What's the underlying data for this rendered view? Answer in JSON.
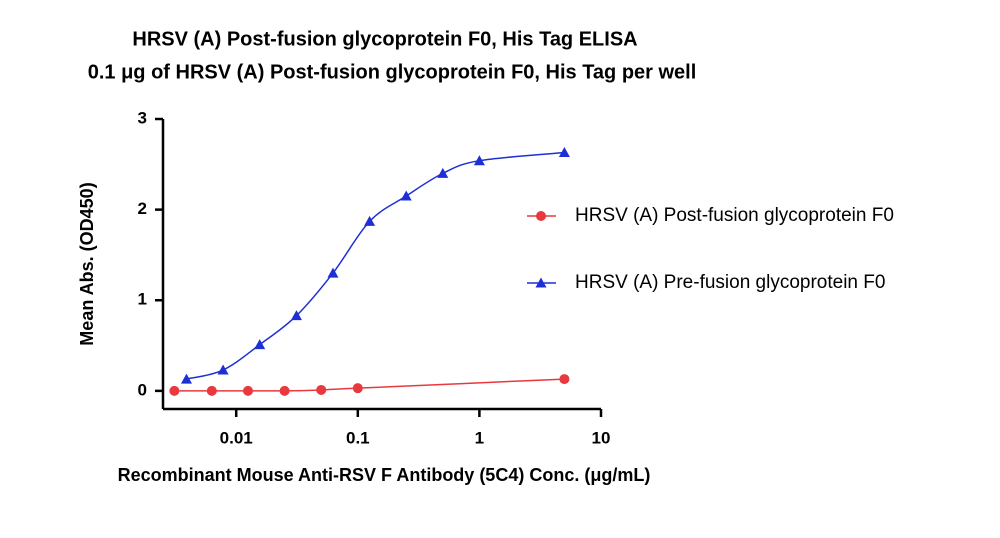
{
  "chart_data": {
    "type": "line",
    "title": "HRSV (A) Post-fusion glycoprotein F0, His Tag ELISA",
    "subtitle": "0.1 μg of HRSV (A) Post-fusion glycoprotein F0, His Tag per well",
    "x_label": "Recombinant Mouse Anti-RSV F Antibody (5C4) Conc. (μg/mL)",
    "y_label": "Mean Abs. (OD450)",
    "xscale": "log",
    "xlim": [
      0.0025,
      10
    ],
    "xticks": [
      0.01,
      0.1,
      1,
      10
    ],
    "ylim": [
      -0.2,
      3
    ],
    "yticks": [
      0,
      1,
      2,
      3
    ],
    "legend": "right",
    "series": [
      {
        "name": "HRSV (A) Post-fusion glycoprotein F0",
        "color": "#e8393f",
        "marker": "circle",
        "x": [
          0.0031,
          0.0063,
          0.0125,
          0.025,
          0.05,
          0.1,
          5
        ],
        "values": [
          0,
          0,
          0,
          0,
          0.01,
          0.03,
          0.13
        ]
      },
      {
        "name": "HRSV (A) Pre-fusion glycoprotein F0",
        "color": "#1f2fd6",
        "marker": "triangle",
        "x": [
          0.0039,
          0.0078,
          0.0156,
          0.0313,
          0.0625,
          0.125,
          0.25,
          0.5,
          1,
          5
        ],
        "values": [
          0.13,
          0.23,
          0.51,
          0.83,
          1.3,
          1.87,
          2.15,
          2.4,
          2.54,
          2.63
        ]
      }
    ]
  }
}
